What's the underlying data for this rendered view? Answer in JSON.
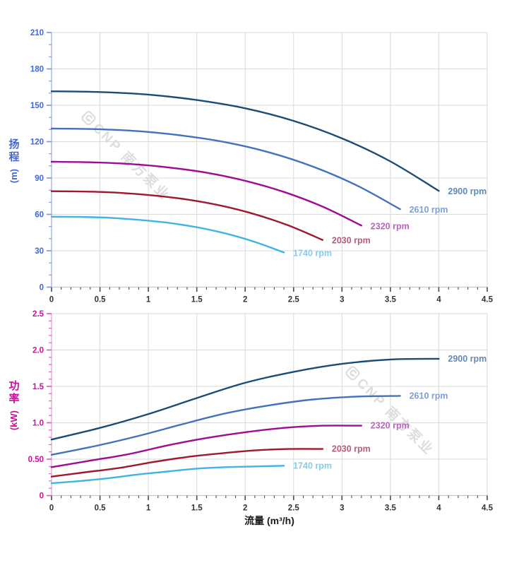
{
  "page": {
    "background": "#ffffff"
  },
  "watermark": {
    "text": "CNP 南方泵业",
    "logo_icon": "cnp-logo",
    "color": "#c2c2c8"
  },
  "chart_data": [
    {
      "type": "line",
      "title": "",
      "xlabel": "流量 (m³/h)",
      "ylabel": "扬程 (m)",
      "ylabel_cjk": "扬程",
      "ylabel_unit": "(m)",
      "xlim": [
        0,
        4.5
      ],
      "ylim": [
        0,
        210
      ],
      "grid": true,
      "legend_position": "end-of-line-labels",
      "x_axis": {
        "major_step": 0.5,
        "minor_step": 0.1,
        "tick_labels": [
          "0",
          "0.5",
          "1",
          "1.5",
          "2",
          "2.5",
          "3",
          "3.5",
          "4",
          "4.5"
        ],
        "label_color": "#333333",
        "tick_color": "#4a4a4a",
        "line_color": "#c9c9c9"
      },
      "y_axis": {
        "major_step": 30,
        "minor_step": 10,
        "tick_labels": [
          "0",
          "30",
          "60",
          "90",
          "120",
          "150",
          "180",
          "210"
        ],
        "label_color": "#4366d6",
        "tick_color": "#7e93de",
        "line_color": "#a4b1e2"
      },
      "series": [
        {
          "name": "2900 rpm",
          "color": "#1b4c75",
          "label_color": "#6289ba",
          "x": [
            0,
            0.5,
            1,
            1.5,
            2,
            2.5,
            3,
            3.5,
            4
          ],
          "y": [
            161.5,
            160.9,
            158.8,
            154.3,
            147.5,
            137.1,
            122.7,
            103.7,
            79.4
          ]
        },
        {
          "name": "2610 rpm",
          "color": "#4372bd",
          "label_color": "#7d9fd9",
          "x": [
            0,
            0.45,
            0.9,
            1.35,
            1.8,
            2.25,
            2.7,
            3.15,
            3.6
          ],
          "y": [
            130.8,
            130.3,
            128.6,
            125.0,
            119.5,
            111.1,
            99.4,
            84.0,
            64.3
          ]
        },
        {
          "name": "2320 rpm",
          "color": "#9e0c96",
          "label_color": "#b964be",
          "x": [
            0,
            0.4,
            0.8,
            1.2,
            1.6,
            2,
            2.4,
            2.8,
            3.2
          ],
          "y": [
            103.4,
            103.0,
            101.6,
            98.8,
            94.4,
            87.7,
            78.5,
            66.4,
            50.8
          ]
        },
        {
          "name": "2030 rpm",
          "color": "#a0182f",
          "label_color": "#b55d75",
          "x": [
            0,
            0.35,
            0.7,
            1.05,
            1.4,
            1.75,
            2.1,
            2.45,
            2.8
          ],
          "y": [
            79.1,
            78.8,
            77.8,
            75.6,
            72.3,
            67.2,
            60.1,
            50.8,
            38.9
          ]
        },
        {
          "name": "1740 rpm",
          "color": "#41b3e4",
          "label_color": "#86cdec",
          "x": [
            0,
            0.3,
            0.6,
            0.9,
            1.2,
            1.5,
            1.8,
            2.1,
            2.4
          ],
          "y": [
            58.1,
            57.9,
            57.2,
            55.5,
            53.1,
            49.4,
            44.2,
            37.3,
            28.6
          ]
        }
      ]
    },
    {
      "type": "line",
      "title": "",
      "xlabel": "流量 (m³/h)",
      "ylabel": "功率 (kW)",
      "ylabel_cjk": "功率",
      "ylabel_unit": "(kW)",
      "xlim": [
        0,
        4.5
      ],
      "ylim": [
        0,
        2.5
      ],
      "grid": true,
      "legend_position": "end-of-line-labels",
      "x_axis": {
        "major_step": 0.5,
        "minor_step": 0.1,
        "tick_labels": [
          "0",
          "0.5",
          "1",
          "1.5",
          "2",
          "2.5",
          "3",
          "3.5",
          "4",
          "4.5"
        ],
        "label_color": "#333333",
        "tick_color": "#4a4a4a",
        "line_color": "#c9c9c9"
      },
      "y_axis": {
        "major_step": 0.5,
        "minor_step": 0.1,
        "tick_labels": [
          "0",
          "0.50",
          "1.0",
          "1.5",
          "2.0",
          "2.5"
        ],
        "label_color": "#cb0f9b",
        "tick_color": "#d95cb3",
        "line_color": "#e3a8d2"
      },
      "series": [
        {
          "name": "2900 rpm",
          "color": "#1b4c75",
          "label_color": "#6289ba",
          "x": [
            0,
            0.5,
            1,
            1.5,
            2,
            2.5,
            3,
            3.5,
            4
          ],
          "y": [
            0.77,
            0.93,
            1.12,
            1.34,
            1.55,
            1.7,
            1.81,
            1.87,
            1.88
          ]
        },
        {
          "name": "2610 rpm",
          "color": "#4372bd",
          "label_color": "#7d9fd9",
          "x": [
            0,
            0.45,
            0.9,
            1.35,
            1.8,
            2.25,
            2.7,
            3.15,
            3.6
          ],
          "y": [
            0.56,
            0.68,
            0.82,
            0.98,
            1.13,
            1.24,
            1.32,
            1.36,
            1.37
          ]
        },
        {
          "name": "2320 rpm",
          "color": "#9e0c96",
          "label_color": "#b964be",
          "x": [
            0,
            0.4,
            0.8,
            1.2,
            1.6,
            2,
            2.4,
            2.8,
            3.2
          ],
          "y": [
            0.39,
            0.48,
            0.57,
            0.69,
            0.79,
            0.87,
            0.93,
            0.96,
            0.96
          ]
        },
        {
          "name": "2030 rpm",
          "color": "#a0182f",
          "label_color": "#b55d75",
          "x": [
            0,
            0.35,
            0.7,
            1.05,
            1.4,
            1.75,
            2.1,
            2.45,
            2.8
          ],
          "y": [
            0.26,
            0.32,
            0.38,
            0.46,
            0.53,
            0.58,
            0.62,
            0.64,
            0.64
          ]
        },
        {
          "name": "1740 rpm",
          "color": "#41b3e4",
          "label_color": "#86cdec",
          "x": [
            0,
            0.3,
            0.6,
            0.9,
            1.2,
            1.5,
            1.8,
            2.1,
            2.4
          ],
          "y": [
            0.17,
            0.2,
            0.24,
            0.29,
            0.33,
            0.37,
            0.39,
            0.4,
            0.41
          ]
        }
      ]
    }
  ]
}
